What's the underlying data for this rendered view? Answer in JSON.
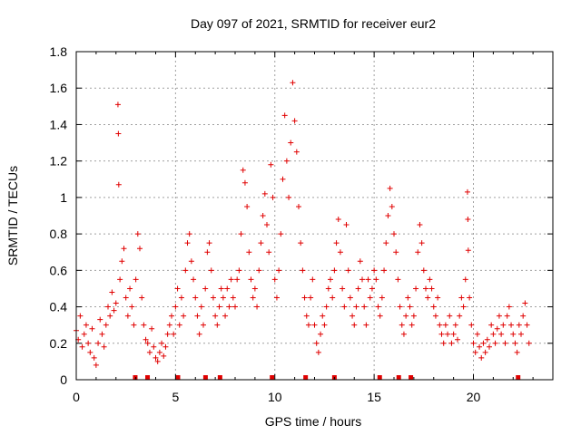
{
  "chart_data": {
    "type": "scatter",
    "title": "Day 097 of 2021, SRMTID for receiver eur2",
    "xlabel": "GPS time / hours",
    "ylabel": "SRMTID / TECUs",
    "xlim": [
      0,
      24
    ],
    "ylim": [
      0,
      1.8
    ],
    "xticks": [
      0,
      5,
      10,
      15,
      20
    ],
    "xtick_labels": [
      "0",
      "5",
      "10",
      "15",
      "20"
    ],
    "yticks": [
      0,
      0.2,
      0.4,
      0.6,
      0.8,
      1.0,
      1.2,
      1.4,
      1.6,
      1.8
    ],
    "ytick_labels": [
      "0",
      "0.2",
      "0.4",
      "0.6",
      "0.8",
      "1",
      "1.2",
      "1.4",
      "1.6",
      "1.8"
    ],
    "grid": true,
    "marker": "+",
    "color": "#e00000",
    "series": [
      {
        "name": "SRMTID",
        "points": [
          [
            0.0,
            0.27
          ],
          [
            0.1,
            0.22
          ],
          [
            0.2,
            0.35
          ],
          [
            0.3,
            0.18
          ],
          [
            0.4,
            0.25
          ],
          [
            0.5,
            0.3
          ],
          [
            0.6,
            0.2
          ],
          [
            0.7,
            0.15
          ],
          [
            0.8,
            0.28
          ],
          [
            0.9,
            0.12
          ],
          [
            1.0,
            0.08
          ],
          [
            1.1,
            0.2
          ],
          [
            1.2,
            0.33
          ],
          [
            1.3,
            0.25
          ],
          [
            1.4,
            0.18
          ],
          [
            1.5,
            0.3
          ],
          [
            1.6,
            0.4
          ],
          [
            1.7,
            0.35
          ],
          [
            1.8,
            0.48
          ],
          [
            1.9,
            0.38
          ],
          [
            2.0,
            0.42
          ],
          [
            2.1,
            1.51
          ],
          [
            2.12,
            1.35
          ],
          [
            2.14,
            1.07
          ],
          [
            2.2,
            0.55
          ],
          [
            2.3,
            0.65
          ],
          [
            2.4,
            0.72
          ],
          [
            2.5,
            0.45
          ],
          [
            2.6,
            0.35
          ],
          [
            2.7,
            0.5
          ],
          [
            2.8,
            0.4
          ],
          [
            2.9,
            0.3
          ],
          [
            3.0,
            0.55
          ],
          [
            3.1,
            0.8
          ],
          [
            3.2,
            0.72
          ],
          [
            3.3,
            0.45
          ],
          [
            3.4,
            0.3
          ],
          [
            3.5,
            0.22
          ],
          [
            3.6,
            0.2
          ],
          [
            3.7,
            0.15
          ],
          [
            3.8,
            0.28
          ],
          [
            3.9,
            0.18
          ],
          [
            4.0,
            0.12
          ],
          [
            4.1,
            0.1
          ],
          [
            4.2,
            0.15
          ],
          [
            4.3,
            0.2
          ],
          [
            4.4,
            0.13
          ],
          [
            4.5,
            0.18
          ],
          [
            4.6,
            0.25
          ],
          [
            4.7,
            0.3
          ],
          [
            4.8,
            0.35
          ],
          [
            4.9,
            0.25
          ],
          [
            5.0,
            0.4
          ],
          [
            5.1,
            0.5
          ],
          [
            5.2,
            0.3
          ],
          [
            5.3,
            0.45
          ],
          [
            5.4,
            0.35
          ],
          [
            5.5,
            0.6
          ],
          [
            5.6,
            0.75
          ],
          [
            5.7,
            0.8
          ],
          [
            5.8,
            0.65
          ],
          [
            5.9,
            0.55
          ],
          [
            6.0,
            0.45
          ],
          [
            6.1,
            0.35
          ],
          [
            6.2,
            0.25
          ],
          [
            6.3,
            0.4
          ],
          [
            6.4,
            0.3
          ],
          [
            6.5,
            0.5
          ],
          [
            6.6,
            0.7
          ],
          [
            6.7,
            0.75
          ],
          [
            6.8,
            0.6
          ],
          [
            6.9,
            0.45
          ],
          [
            7.0,
            0.35
          ],
          [
            7.1,
            0.3
          ],
          [
            7.2,
            0.4
          ],
          [
            7.3,
            0.5
          ],
          [
            7.4,
            0.45
          ],
          [
            7.5,
            0.35
          ],
          [
            7.6,
            0.5
          ],
          [
            7.7,
            0.4
          ],
          [
            7.8,
            0.55
          ],
          [
            7.9,
            0.45
          ],
          [
            8.0,
            0.4
          ],
          [
            8.1,
            0.55
          ],
          [
            8.2,
            0.6
          ],
          [
            8.3,
            0.8
          ],
          [
            8.4,
            1.15
          ],
          [
            8.5,
            1.08
          ],
          [
            8.6,
            0.95
          ],
          [
            8.7,
            0.7
          ],
          [
            8.8,
            0.55
          ],
          [
            8.9,
            0.45
          ],
          [
            9.0,
            0.5
          ],
          [
            9.1,
            0.4
          ],
          [
            9.2,
            0.6
          ],
          [
            9.3,
            0.75
          ],
          [
            9.4,
            0.9
          ],
          [
            9.5,
            1.02
          ],
          [
            9.6,
            0.85
          ],
          [
            9.7,
            0.7
          ],
          [
            9.8,
            1.18
          ],
          [
            9.9,
            1.0
          ],
          [
            10.0,
            0.55
          ],
          [
            10.1,
            0.45
          ],
          [
            10.2,
            0.6
          ],
          [
            10.3,
            0.8
          ],
          [
            10.4,
            1.1
          ],
          [
            10.5,
            1.45
          ],
          [
            10.6,
            1.2
          ],
          [
            10.7,
            1.0
          ],
          [
            10.8,
            1.3
          ],
          [
            10.9,
            1.63
          ],
          [
            11.0,
            1.42
          ],
          [
            11.1,
            1.25
          ],
          [
            11.2,
            0.95
          ],
          [
            11.3,
            0.75
          ],
          [
            11.4,
            0.6
          ],
          [
            11.5,
            0.45
          ],
          [
            11.6,
            0.35
          ],
          [
            11.7,
            0.3
          ],
          [
            11.8,
            0.45
          ],
          [
            11.9,
            0.55
          ],
          [
            12.0,
            0.3
          ],
          [
            12.1,
            0.2
          ],
          [
            12.2,
            0.15
          ],
          [
            12.3,
            0.25
          ],
          [
            12.4,
            0.35
          ],
          [
            12.5,
            0.3
          ],
          [
            12.6,
            0.4
          ],
          [
            12.7,
            0.5
          ],
          [
            12.8,
            0.55
          ],
          [
            12.9,
            0.45
          ],
          [
            13.0,
            0.6
          ],
          [
            13.1,
            0.75
          ],
          [
            13.2,
            0.88
          ],
          [
            13.3,
            0.7
          ],
          [
            13.4,
            0.5
          ],
          [
            13.5,
            0.4
          ],
          [
            13.6,
            0.85
          ],
          [
            13.7,
            0.6
          ],
          [
            13.8,
            0.45
          ],
          [
            13.9,
            0.35
          ],
          [
            14.0,
            0.3
          ],
          [
            14.1,
            0.4
          ],
          [
            14.2,
            0.5
          ],
          [
            14.3,
            0.65
          ],
          [
            14.4,
            0.55
          ],
          [
            14.5,
            0.4
          ],
          [
            14.6,
            0.3
          ],
          [
            14.7,
            0.55
          ],
          [
            14.8,
            0.45
          ],
          [
            14.9,
            0.5
          ],
          [
            15.0,
            0.6
          ],
          [
            15.1,
            0.55
          ],
          [
            15.2,
            0.4
          ],
          [
            15.3,
            0.35
          ],
          [
            15.4,
            0.45
          ],
          [
            15.5,
            0.6
          ],
          [
            15.6,
            0.75
          ],
          [
            15.7,
            0.9
          ],
          [
            15.8,
            1.05
          ],
          [
            15.9,
            0.95
          ],
          [
            16.0,
            0.8
          ],
          [
            16.1,
            0.7
          ],
          [
            16.2,
            0.55
          ],
          [
            16.3,
            0.4
          ],
          [
            16.4,
            0.3
          ],
          [
            16.5,
            0.25
          ],
          [
            16.6,
            0.35
          ],
          [
            16.7,
            0.45
          ],
          [
            16.8,
            0.4
          ],
          [
            16.9,
            0.3
          ],
          [
            17.0,
            0.35
          ],
          [
            17.1,
            0.5
          ],
          [
            17.2,
            0.7
          ],
          [
            17.3,
            0.85
          ],
          [
            17.4,
            0.75
          ],
          [
            17.5,
            0.6
          ],
          [
            17.6,
            0.5
          ],
          [
            17.7,
            0.45
          ],
          [
            17.8,
            0.55
          ],
          [
            17.9,
            0.5
          ],
          [
            18.0,
            0.4
          ],
          [
            18.1,
            0.35
          ],
          [
            18.2,
            0.45
          ],
          [
            18.3,
            0.3
          ],
          [
            18.4,
            0.25
          ],
          [
            18.5,
            0.2
          ],
          [
            18.6,
            0.3
          ],
          [
            18.7,
            0.25
          ],
          [
            18.8,
            0.35
          ],
          [
            18.9,
            0.2
          ],
          [
            19.0,
            0.25
          ],
          [
            19.1,
            0.3
          ],
          [
            19.2,
            0.22
          ],
          [
            19.3,
            0.35
          ],
          [
            19.4,
            0.45
          ],
          [
            19.5,
            0.4
          ],
          [
            19.6,
            0.55
          ],
          [
            19.7,
            1.03
          ],
          [
            19.72,
            0.88
          ],
          [
            19.74,
            0.71
          ],
          [
            19.8,
            0.45
          ],
          [
            19.9,
            0.3
          ],
          [
            20.0,
            0.2
          ],
          [
            20.1,
            0.15
          ],
          [
            20.2,
            0.25
          ],
          [
            20.3,
            0.18
          ],
          [
            20.4,
            0.12
          ],
          [
            20.5,
            0.2
          ],
          [
            20.6,
            0.15
          ],
          [
            20.7,
            0.22
          ],
          [
            20.8,
            0.18
          ],
          [
            20.9,
            0.3
          ],
          [
            21.0,
            0.25
          ],
          [
            21.1,
            0.2
          ],
          [
            21.2,
            0.28
          ],
          [
            21.3,
            0.35
          ],
          [
            21.4,
            0.25
          ],
          [
            21.5,
            0.3
          ],
          [
            21.6,
            0.2
          ],
          [
            21.7,
            0.35
          ],
          [
            21.8,
            0.4
          ],
          [
            21.9,
            0.3
          ],
          [
            22.0,
            0.25
          ],
          [
            22.1,
            0.2
          ],
          [
            22.2,
            0.15
          ],
          [
            22.3,
            0.3
          ],
          [
            22.4,
            0.25
          ],
          [
            22.5,
            0.35
          ],
          [
            22.6,
            0.42
          ],
          [
            22.7,
            0.3
          ],
          [
            22.8,
            0.2
          ]
        ]
      }
    ],
    "gap_markers_x": [
      2.97,
      3.59,
      5.12,
      6.51,
      7.24,
      9.86,
      11.55,
      13.0,
      15.28,
      16.24,
      16.85,
      22.25
    ]
  }
}
